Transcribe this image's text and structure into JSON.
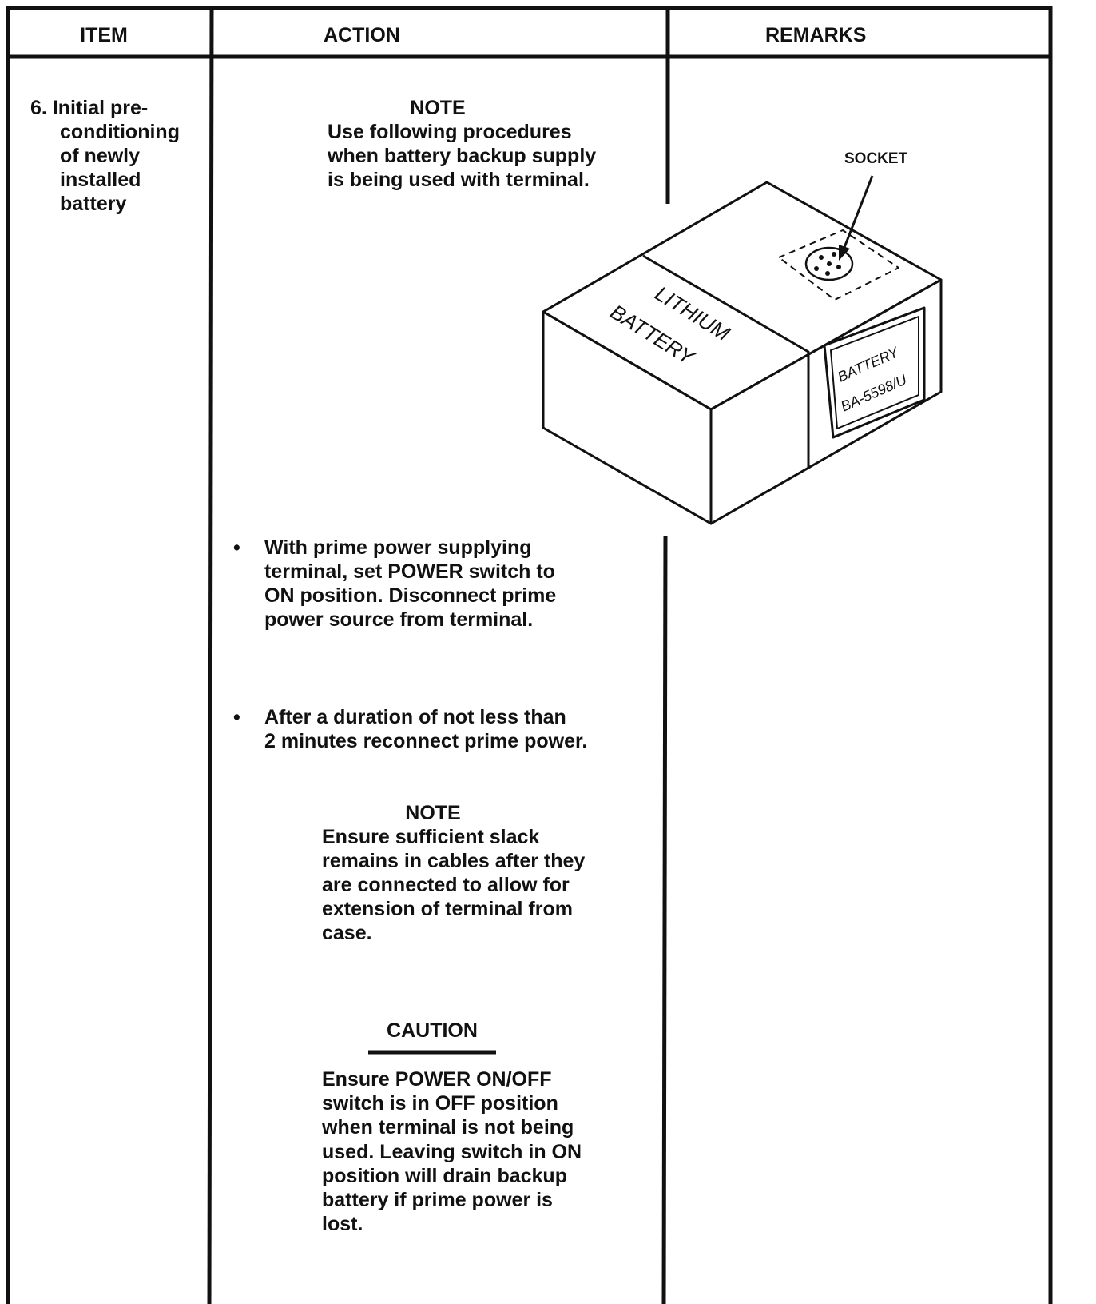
{
  "header": [
    "ITEM",
    "ACTION",
    "REMARKS"
  ],
  "item": [
    "6. Initial pre-",
    "conditioning",
    "of newly",
    "installed",
    "battery"
  ],
  "note_1": {
    "heading": "NOTE",
    "lines": [
      "Use following procedures",
      "when battery backup supply",
      "is being used with terminal."
    ]
  },
  "steps": [
    [
      "With prime power supplying",
      "terminal, set POWER switch to",
      "ON position. Disconnect prime",
      "power source from terminal."
    ],
    [
      "After a duration of not less than",
      "2 minutes reconnect prime power."
    ]
  ],
  "note_2": {
    "heading": "NOTE",
    "lines": [
      "Ensure sufficient slack",
      "remains in cables after they",
      "are connected to allow for",
      "extension of terminal from",
      "case."
    ]
  },
  "caution": {
    "heading": "CAUTION",
    "lines": [
      "Ensure POWER ON/OFF",
      "switch is in OFF position",
      "when terminal is not being",
      "used. Leaving switch in ON",
      "position will drain backup",
      "battery if prime power is",
      "lost."
    ]
  },
  "figure": {
    "socket_label": "SOCKET",
    "side_label": [
      "LITHIUM",
      "BATTERY"
    ],
    "plate_label": [
      "BATTERY",
      "BA-5598/U"
    ]
  }
}
